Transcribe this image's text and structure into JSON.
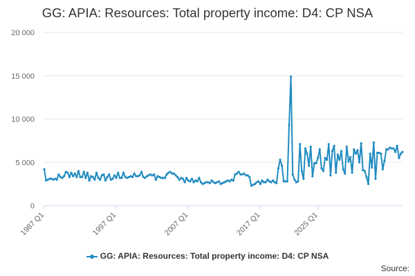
{
  "chart_data": {
    "type": "line",
    "title": "GG: APIA: Resources: Total property income: D4: CP NSA",
    "xlabel": "",
    "ylabel": "",
    "ylim": [
      0,
      20000
    ],
    "yticks": [
      0,
      5000,
      10000,
      15000,
      20000
    ],
    "yticklabels": [
      "0",
      "5 000",
      "10 000",
      "15 000",
      "20 000"
    ],
    "xticks": [
      "1987 Q1",
      "1997 Q1",
      "2007 Q1",
      "2017 Q1",
      "2025 Q1"
    ],
    "grid": true,
    "legend": "bottom",
    "source": "Source:",
    "color": "#1f8ac0",
    "start": "1987 Q1",
    "frequency": "quarterly",
    "series": [
      {
        "name": "GG: APIA: Resources: Total property income: D4: CP NSA",
        "values": [
          4200,
          2900,
          3000,
          3100,
          3100,
          3000,
          3100,
          3000,
          3600,
          3300,
          3200,
          3400,
          3900,
          3800,
          3300,
          3800,
          3400,
          3700,
          3300,
          4000,
          3300,
          3300,
          3900,
          3200,
          3800,
          2900,
          3400,
          3300,
          3000,
          3800,
          3200,
          3000,
          3500,
          3600,
          2900,
          3300,
          3600,
          3000,
          3100,
          3500,
          3200,
          3800,
          3200,
          3200,
          3800,
          3300,
          3200,
          3300,
          3400,
          3300,
          3700,
          3400,
          3400,
          3500,
          3900,
          3300,
          3200,
          3400,
          3500,
          3600,
          3500,
          3600,
          3000,
          3400,
          3300,
          3200,
          3200,
          3200,
          3600,
          3800,
          3900,
          3700,
          3700,
          3500,
          3300,
          3000,
          3200,
          3100,
          2700,
          3200,
          2900,
          2800,
          3100,
          2700,
          2900,
          2800,
          3200,
          2700,
          2500,
          2600,
          2700,
          2700,
          2600,
          2900,
          2700,
          2600,
          2700,
          2800,
          2500,
          2600,
          2700,
          2800,
          2900,
          2800,
          3000,
          2900,
          3600,
          3700,
          3900,
          3600,
          3600,
          3700,
          3500,
          3500,
          3300,
          2300,
          2400,
          2500,
          2700,
          2800,
          2500,
          2900,
          2700,
          2700,
          3000,
          2800,
          2700,
          2900,
          2700,
          2600,
          4300,
          5300,
          4600,
          2800,
          2800,
          2800,
          9300,
          14900,
          3600,
          3000,
          2700,
          2800,
          7100,
          4000,
          3100,
          6600,
          6000,
          4600,
          6800,
          3400,
          4900,
          4900,
          5500,
          6500,
          4300,
          4000,
          5500,
          5300,
          7100,
          3500,
          6300,
          6900,
          3800,
          5900,
          5300,
          6300,
          4200,
          3700,
          6800,
          5100,
          5600,
          3800,
          6500,
          6000,
          6400,
          5000,
          7200,
          4100,
          4000,
          3300,
          2500,
          6000,
          4400,
          7300,
          3100,
          6100,
          6100,
          6000,
          4200,
          5200,
          6500,
          6500,
          6700,
          6600,
          6600,
          6200,
          6900,
          5500,
          6000,
          6200
        ]
      }
    ]
  }
}
